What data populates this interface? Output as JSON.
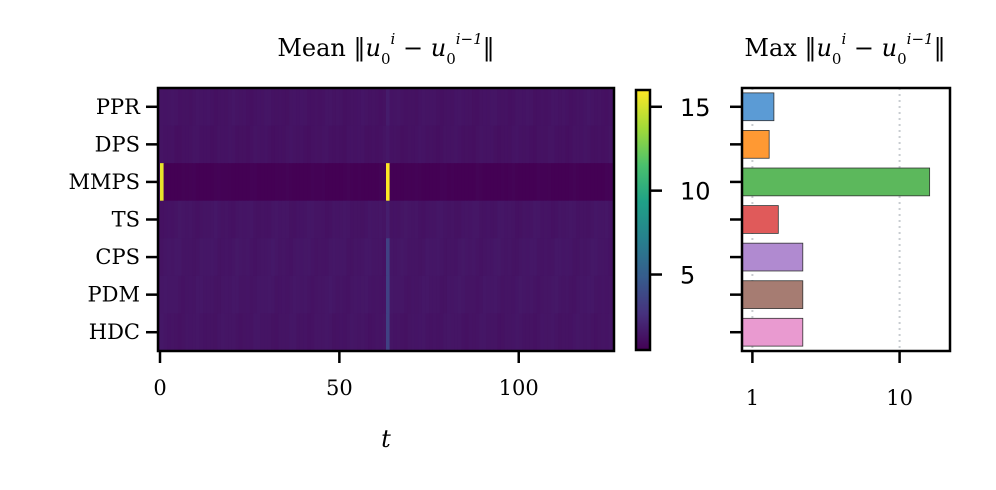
{
  "chart_data": [
    {
      "type": "heatmap",
      "title": "Mean ‖u₀ⁱ − u₀ⁱ⁻¹‖",
      "xlabel": "t",
      "ylabel": "",
      "rows": [
        "PPR",
        "DPS",
        "MMPS",
        "TS",
        "CPS",
        "PDM",
        "HDC"
      ],
      "x_ticks": [
        "0",
        "50",
        "100"
      ],
      "xlim": [
        0,
        126
      ],
      "colorscale": "viridis",
      "colorbar": {
        "ticks": [
          "5",
          "10",
          "15"
        ],
        "range": [
          0.5,
          16
        ]
      },
      "cells": {
        "PPR": {
          "base": 1.3,
          "spikes": [
            {
              "t": 63,
              "value": 1.7
            }
          ]
        },
        "DPS": {
          "base": 1.25,
          "spikes": [
            {
              "t": 63,
              "value": 1.5
            }
          ]
        },
        "MMPS": {
          "base": 0.5,
          "spikes": [
            {
              "t": 0,
              "value": 15.5
            },
            {
              "t": 63,
              "value": 16.0
            }
          ]
        },
        "TS": {
          "base": 1.35,
          "spikes": [
            {
              "t": 63,
              "value": 1.8
            }
          ]
        },
        "CPS": {
          "base": 1.4,
          "spikes": [
            {
              "t": 63,
              "value": 3.5
            }
          ]
        },
        "PDM": {
          "base": 1.4,
          "spikes": [
            {
              "t": 63,
              "value": 3.5
            }
          ]
        },
        "HDC": {
          "base": 1.35,
          "spikes": [
            {
              "t": 63,
              "value": 3.5
            }
          ]
        }
      }
    },
    {
      "type": "bar",
      "orientation": "horizontal",
      "title": "Max ‖u₀ⁱ − u₀ⁱ⁻¹‖",
      "categories": [
        "PPR",
        "DPS",
        "MMPS",
        "TS",
        "CPS",
        "PDM",
        "HDC"
      ],
      "values": [
        1.4,
        1.3,
        16.0,
        1.5,
        2.2,
        2.2,
        2.2
      ],
      "x_scale": "log",
      "x_ticks": [
        "1",
        "10"
      ],
      "xlim": [
        0.85,
        22
      ],
      "grid": "vertical dotted",
      "colors": [
        "#5b9bd5",
        "#ff9933",
        "#5cb85c",
        "#e05a5a",
        "#b08ad0",
        "#a67c72",
        "#e99ad0"
      ]
    }
  ]
}
